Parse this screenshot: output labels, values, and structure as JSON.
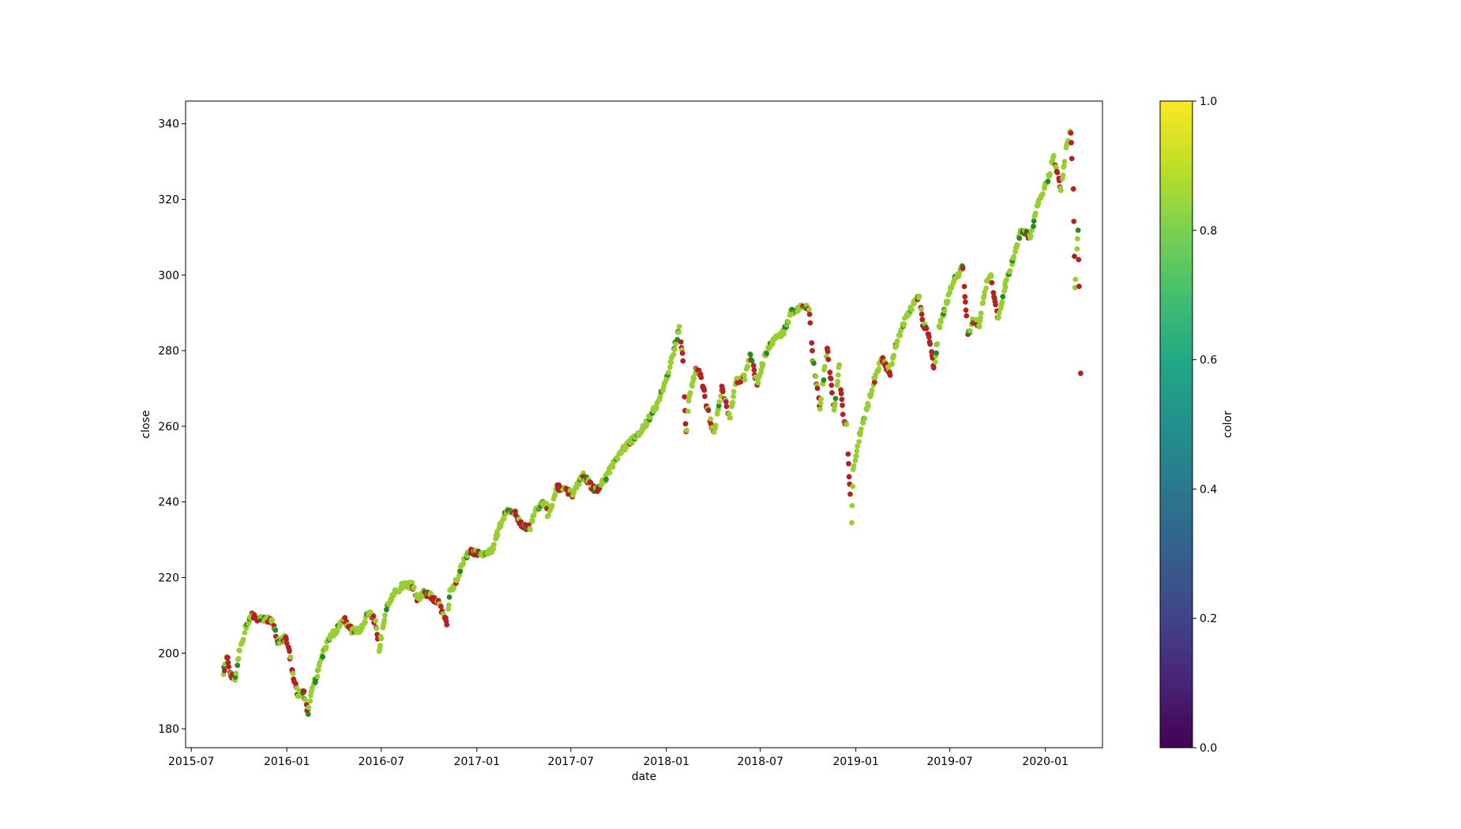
{
  "chart_data": {
    "type": "scatter",
    "xlabel": "date",
    "ylabel": "close",
    "xlim": [
      "2015-06-20",
      "2020-04-20"
    ],
    "ylim": [
      175,
      346
    ],
    "x_ticks": [
      "2015-07-01",
      "2016-01-01",
      "2016-07-01",
      "2017-01-01",
      "2017-07-01",
      "2018-01-01",
      "2018-07-01",
      "2019-01-01",
      "2019-07-01",
      "2020-01-01"
    ],
    "x_tick_labels": [
      "2015-07",
      "2016-01",
      "2016-07",
      "2017-01",
      "2017-07",
      "2018-01",
      "2018-07",
      "2019-01",
      "2019-07",
      "2020-01"
    ],
    "y_ticks": [
      180,
      200,
      220,
      240,
      260,
      280,
      300,
      320,
      340
    ],
    "colors": {
      "up": "#9acd32",
      "strong_up": "#228b22",
      "down": "#b22222"
    },
    "anchors": [
      [
        "2015-09-01",
        195
      ],
      [
        "2015-09-08",
        199
      ],
      [
        "2015-09-16",
        194
      ],
      [
        "2015-09-24",
        193
      ],
      [
        "2015-10-01",
        200
      ],
      [
        "2015-10-14",
        207
      ],
      [
        "2015-10-25",
        210
      ],
      [
        "2015-11-10",
        209
      ],
      [
        "2015-11-25",
        209
      ],
      [
        "2015-12-05",
        208
      ],
      [
        "2015-12-15",
        203
      ],
      [
        "2015-12-30",
        204
      ],
      [
        "2016-01-05",
        201
      ],
      [
        "2016-01-13",
        194
      ],
      [
        "2016-01-22",
        189
      ],
      [
        "2016-02-02",
        190
      ],
      [
        "2016-02-11",
        184
      ],
      [
        "2016-02-18",
        191
      ],
      [
        "2016-02-26",
        193
      ],
      [
        "2016-03-08",
        199
      ],
      [
        "2016-03-22",
        204
      ],
      [
        "2016-04-05",
        206
      ],
      [
        "2016-04-20",
        209
      ],
      [
        "2016-05-05",
        206
      ],
      [
        "2016-05-20",
        206
      ],
      [
        "2016-06-08",
        211
      ],
      [
        "2016-06-20",
        208
      ],
      [
        "2016-06-27",
        201
      ],
      [
        "2016-07-05",
        208
      ],
      [
        "2016-07-12",
        213
      ],
      [
        "2016-07-28",
        216
      ],
      [
        "2016-08-12",
        218
      ],
      [
        "2016-08-30",
        218
      ],
      [
        "2016-09-09",
        214
      ],
      [
        "2016-09-22",
        216
      ],
      [
        "2016-10-05",
        215
      ],
      [
        "2016-10-20",
        213
      ],
      [
        "2016-11-04",
        208
      ],
      [
        "2016-11-10",
        216
      ],
      [
        "2016-11-25",
        220
      ],
      [
        "2016-12-08",
        225
      ],
      [
        "2016-12-20",
        227
      ],
      [
        "2017-01-10",
        226
      ],
      [
        "2017-01-30",
        227
      ],
      [
        "2017-02-15",
        234
      ],
      [
        "2017-03-01",
        238
      ],
      [
        "2017-03-15",
        237
      ],
      [
        "2017-03-27",
        234
      ],
      [
        "2017-04-13",
        233
      ],
      [
        "2017-04-25",
        238
      ],
      [
        "2017-05-15",
        240
      ],
      [
        "2017-05-17",
        236
      ],
      [
        "2017-06-05",
        244
      ],
      [
        "2017-06-20",
        243
      ],
      [
        "2017-07-05",
        242
      ],
      [
        "2017-07-25",
        247
      ],
      [
        "2017-08-10",
        244
      ],
      [
        "2017-08-20",
        243
      ],
      [
        "2017-09-05",
        246
      ],
      [
        "2017-09-20",
        250
      ],
      [
        "2017-10-10",
        254
      ],
      [
        "2017-10-25",
        256
      ],
      [
        "2017-11-10",
        258
      ],
      [
        "2017-11-28",
        262
      ],
      [
        "2017-12-15",
        266
      ],
      [
        "2018-01-05",
        274
      ],
      [
        "2018-01-26",
        286
      ],
      [
        "2018-02-02",
        278
      ],
      [
        "2018-02-08",
        258
      ],
      [
        "2018-02-14",
        268
      ],
      [
        "2018-02-27",
        275
      ],
      [
        "2018-03-08",
        274
      ],
      [
        "2018-03-22",
        264
      ],
      [
        "2018-04-02",
        258
      ],
      [
        "2018-04-18",
        270
      ],
      [
        "2018-05-03",
        262
      ],
      [
        "2018-05-15",
        272
      ],
      [
        "2018-06-01",
        273
      ],
      [
        "2018-06-12",
        279
      ],
      [
        "2018-06-25",
        271
      ],
      [
        "2018-07-10",
        279
      ],
      [
        "2018-07-27",
        283
      ],
      [
        "2018-08-15",
        285
      ],
      [
        "2018-08-29",
        290
      ],
      [
        "2018-09-20",
        292
      ],
      [
        "2018-10-03",
        291
      ],
      [
        "2018-10-10",
        278
      ],
      [
        "2018-10-24",
        265
      ],
      [
        "2018-11-07",
        281
      ],
      [
        "2018-11-20",
        264
      ],
      [
        "2018-11-30",
        276
      ],
      [
        "2018-12-07",
        263
      ],
      [
        "2018-12-14",
        260
      ],
      [
        "2018-12-24",
        234
      ],
      [
        "2018-12-27",
        248
      ],
      [
        "2019-01-10",
        259
      ],
      [
        "2019-01-25",
        266
      ],
      [
        "2019-02-05",
        272
      ],
      [
        "2019-02-20",
        278
      ],
      [
        "2019-03-08",
        274
      ],
      [
        "2019-03-20",
        282
      ],
      [
        "2019-04-05",
        288
      ],
      [
        "2019-04-25",
        293
      ],
      [
        "2019-05-03",
        295
      ],
      [
        "2019-05-10",
        287
      ],
      [
        "2019-05-20",
        285
      ],
      [
        "2019-06-01",
        275
      ],
      [
        "2019-06-10",
        286
      ],
      [
        "2019-06-25",
        293
      ],
      [
        "2019-07-10",
        299
      ],
      [
        "2019-07-26",
        302
      ],
      [
        "2019-08-05",
        284
      ],
      [
        "2019-08-15",
        288
      ],
      [
        "2019-08-27",
        287
      ],
      [
        "2019-09-10",
        298
      ],
      [
        "2019-09-18",
        300
      ],
      [
        "2019-10-02",
        288
      ],
      [
        "2019-10-15",
        297
      ],
      [
        "2019-10-30",
        304
      ],
      [
        "2019-11-15",
        312
      ],
      [
        "2019-12-03",
        310
      ],
      [
        "2019-12-20",
        320
      ],
      [
        "2020-01-08",
        326
      ],
      [
        "2020-01-17",
        332
      ],
      [
        "2020-01-31",
        322
      ],
      [
        "2020-02-10",
        334
      ],
      [
        "2020-02-19",
        338
      ],
      [
        "2020-02-24",
        322
      ],
      [
        "2020-02-27",
        297
      ],
      [
        "2020-03-04",
        312
      ],
      [
        "2020-03-09",
        274
      ]
    ]
  },
  "colorbar": {
    "label": "color",
    "min": 0,
    "max": 1,
    "ticks": [
      "0.0",
      "0.2",
      "0.4",
      "0.6",
      "0.8",
      "1.0"
    ]
  }
}
